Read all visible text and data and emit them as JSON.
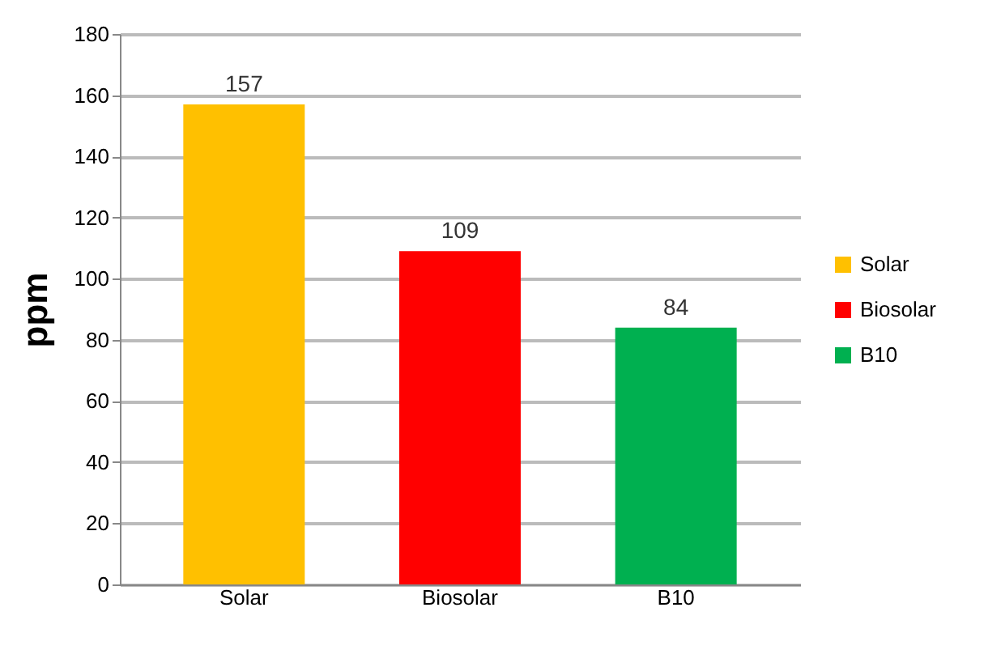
{
  "chart_data": {
    "type": "bar",
    "ylabel": "ppm",
    "stacked": true,
    "categories": [
      "Solar",
      "Biosolar",
      "B10"
    ],
    "series": [
      {
        "name": "Solar",
        "color": "#ffc000",
        "values": [
          157,
          null,
          null
        ]
      },
      {
        "name": "Biosolar",
        "color": "#ff0000",
        "values": [
          null,
          109,
          null
        ]
      },
      {
        "name": "B10",
        "color": "#00b050",
        "values": [
          null,
          null,
          84
        ]
      }
    ],
    "ylim": [
      0,
      180
    ],
    "yticks": [
      0,
      20,
      40,
      60,
      80,
      100,
      120,
      140,
      160,
      180
    ],
    "grid": "y",
    "legend": "right",
    "data_labels": true
  }
}
